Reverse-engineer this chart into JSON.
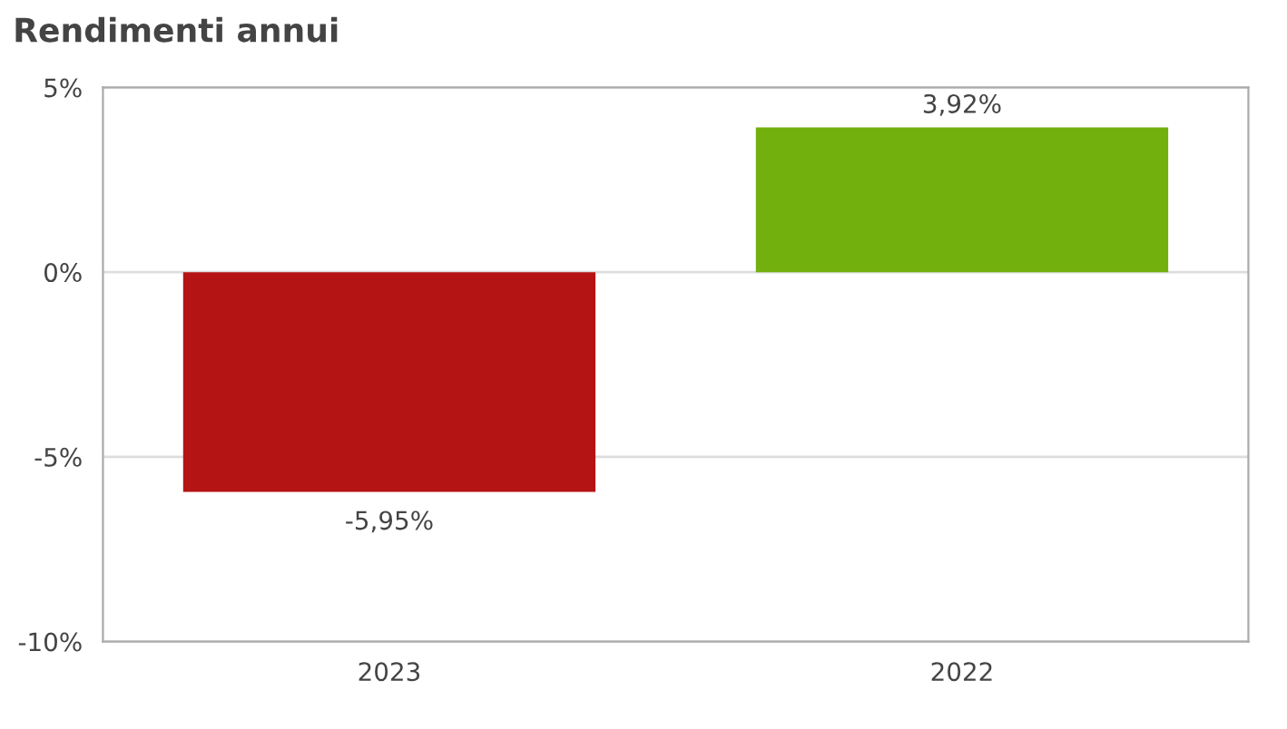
{
  "chart_data": {
    "type": "bar",
    "title": "Rendimenti annui",
    "categories": [
      "2023",
      "2022"
    ],
    "values": [
      -5.95,
      3.92
    ],
    "colors": [
      "#b51414",
      "#72b00e"
    ],
    "value_labels": [
      "-5,95%",
      "3,92%"
    ],
    "ylim": [
      -10,
      5
    ],
    "yticks": [
      {
        "value": -10,
        "label": "-10%"
      },
      {
        "value": -5,
        "label": "-5%"
      },
      {
        "value": 0,
        "label": "0%"
      },
      {
        "value": 5,
        "label": "5%"
      }
    ],
    "grid": "y"
  }
}
